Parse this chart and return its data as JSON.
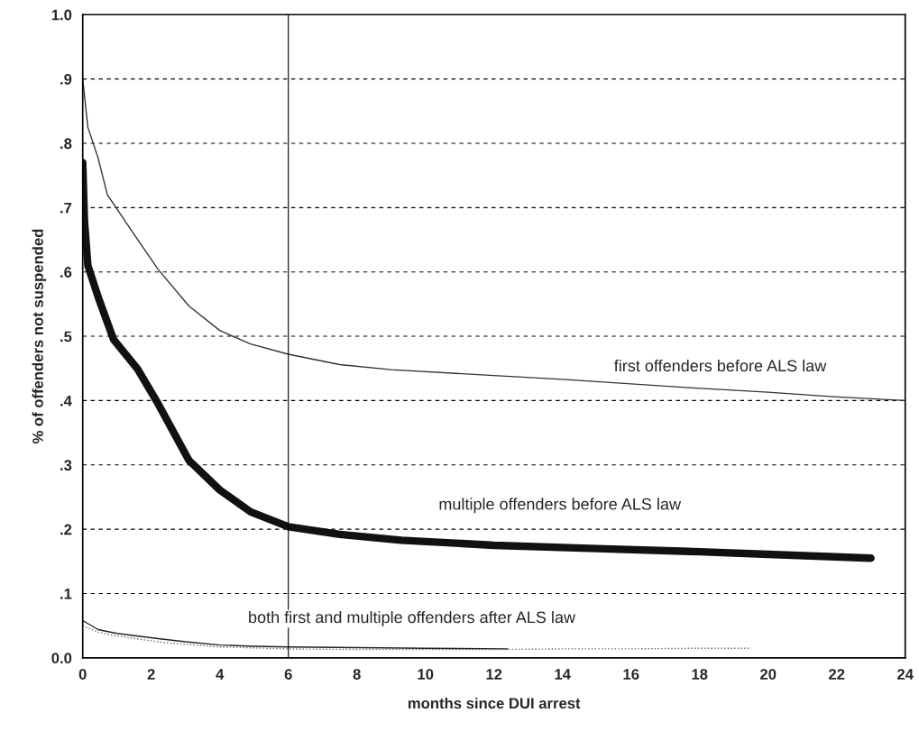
{
  "chart_data": {
    "type": "line",
    "xlabel": "months since DUI arrest",
    "ylabel": "% of offenders not suspended",
    "xlim": [
      0,
      24
    ],
    "xticks": [
      0,
      2,
      4,
      6,
      8,
      10,
      12,
      14,
      16,
      18,
      20,
      22,
      24
    ],
    "ylim": [
      0,
      1
    ],
    "yticks": [
      {
        "value": 0,
        "label": "0.0"
      },
      {
        "value": 0.1,
        "label": ".1"
      },
      {
        "value": 0.2,
        "label": ".2"
      },
      {
        "value": 0.3,
        "label": ".3"
      },
      {
        "value": 0.4,
        "label": ".4"
      },
      {
        "value": 0.5,
        "label": ".5"
      },
      {
        "value": 0.6,
        "label": ".6"
      },
      {
        "value": 0.7,
        "label": ".7"
      },
      {
        "value": 0.8,
        "label": ".8"
      },
      {
        "value": 0.9,
        "label": ".9"
      },
      {
        "value": 1,
        "label": "1.0"
      }
    ],
    "grid": "y",
    "legend": false,
    "marker": "none",
    "ref_lines": [
      {
        "axis": "x",
        "value": 6,
        "color": "#000000",
        "line_style": "solid"
      }
    ],
    "series": [
      {
        "color": "#333333",
        "line_style": "solid",
        "x": [
          0,
          0.15,
          0.45,
          0.72,
          1.35,
          2.2,
          3.1,
          4,
          4.9,
          6,
          7.5,
          9,
          12,
          14,
          17.7,
          20,
          21.9,
          24
        ],
        "values": [
          0.9,
          0.825,
          0.777,
          0.72,
          0.67,
          0.604,
          0.547,
          0.509,
          0.488,
          0.472,
          0.456,
          0.448,
          0.439,
          0.433,
          0.42,
          0.413,
          0.406,
          0.4
        ]
      },
      {
        "color": "#111111",
        "line_style": "solid",
        "x": [
          0,
          0.05,
          0.15,
          0.45,
          0.9,
          1.6,
          2.2,
          3.1,
          4,
          4.9,
          6,
          7.5,
          9.3,
          12,
          15,
          18,
          20,
          23
        ],
        "values": [
          0.77,
          0.68,
          0.61,
          0.561,
          0.495,
          0.449,
          0.395,
          0.307,
          0.261,
          0.227,
          0.204,
          0.192,
          0.183,
          0.175,
          0.17,
          0.165,
          0.161,
          0.155
        ]
      },
      {
        "color": "#222222",
        "line_style": "solid",
        "x": [
          0,
          0.45,
          1,
          2.2,
          3,
          4,
          5,
          6,
          8,
          10,
          12.4
        ],
        "values": [
          0.058,
          0.044,
          0.038,
          0.03,
          0.025,
          0.02,
          0.018,
          0.017,
          0.016,
          0.015,
          0.014
        ]
      },
      {
        "color": "#666666",
        "line_style": "dotted",
        "x": [
          0,
          0.45,
          1,
          2.2,
          3,
          4,
          6,
          8,
          10,
          12,
          14,
          16,
          18,
          19.5
        ],
        "values": [
          0.05,
          0.04,
          0.034,
          0.025,
          0.021,
          0.017,
          0.014,
          0.013,
          0.013,
          0.013,
          0.014,
          0.014,
          0.015,
          0.015
        ]
      }
    ],
    "annotations": [
      "first offenders before ALS law",
      "multiple offenders before ALS law",
      "both first and multiple offenders after ALS law"
    ]
  }
}
